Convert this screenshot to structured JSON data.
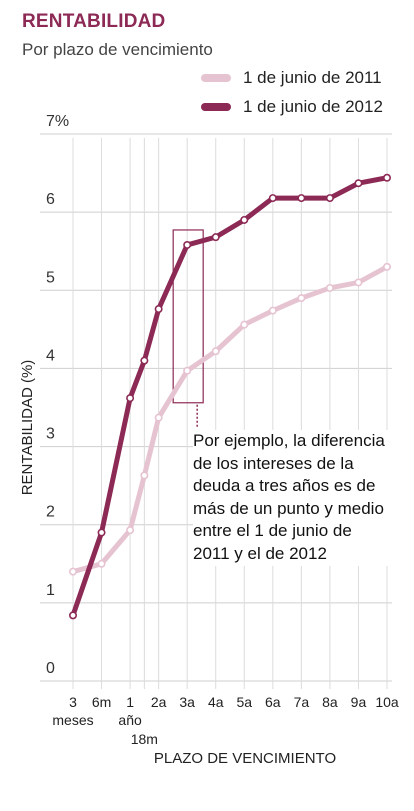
{
  "header": {
    "title": "RENTABILIDAD",
    "subtitle": "Por plazo de vencimiento"
  },
  "legend": [
    {
      "label": "1 de junio de 2011",
      "color": "#e6c3d0"
    },
    {
      "label": "1 de junio de 2012",
      "color": "#8c2a55"
    }
  ],
  "annotation": {
    "text": "Por ejemplo, la diferencia de los intereses de la deuda a tres años es de más de un punto y medio entre el 1 de junio de 2011 y el de 2012"
  },
  "chart_data": {
    "type": "line",
    "xlabel": "PLAZO DE VENCIMIENTO",
    "ylabel": "RENTABILIDAD (%)",
    "ylim": [
      0,
      7
    ],
    "yticks": [
      "0",
      "1",
      "2",
      "3",
      "4",
      "5",
      "6",
      "7%"
    ],
    "grid": true,
    "legend_position": "top-right",
    "categories": [
      "3 meses",
      "6m",
      "1 año",
      "18m",
      "2a",
      "3a",
      "4a",
      "5a",
      "6a",
      "7a",
      "8a",
      "9a",
      "10a"
    ],
    "category_months": [
      3,
      6,
      12,
      18,
      24,
      36,
      48,
      60,
      72,
      84,
      96,
      108,
      120
    ],
    "x": [
      0,
      1,
      2,
      2.5,
      3,
      4,
      5,
      6,
      7,
      8,
      9,
      10,
      11
    ],
    "highlight_category": "3a",
    "series": [
      {
        "name": "1 de junio de 2011",
        "color": "#e6c3d0",
        "values": [
          1.4,
          1.5,
          1.93,
          2.63,
          3.37,
          3.97,
          4.22,
          4.56,
          4.74,
          4.9,
          5.03,
          5.1,
          5.3
        ]
      },
      {
        "name": "1 de junio de 2012",
        "color": "#8c2a55",
        "values": [
          0.84,
          1.9,
          3.62,
          4.1,
          4.76,
          5.58,
          5.68,
          5.9,
          6.18,
          6.18,
          6.18,
          6.37,
          6.44
        ]
      }
    ]
  }
}
